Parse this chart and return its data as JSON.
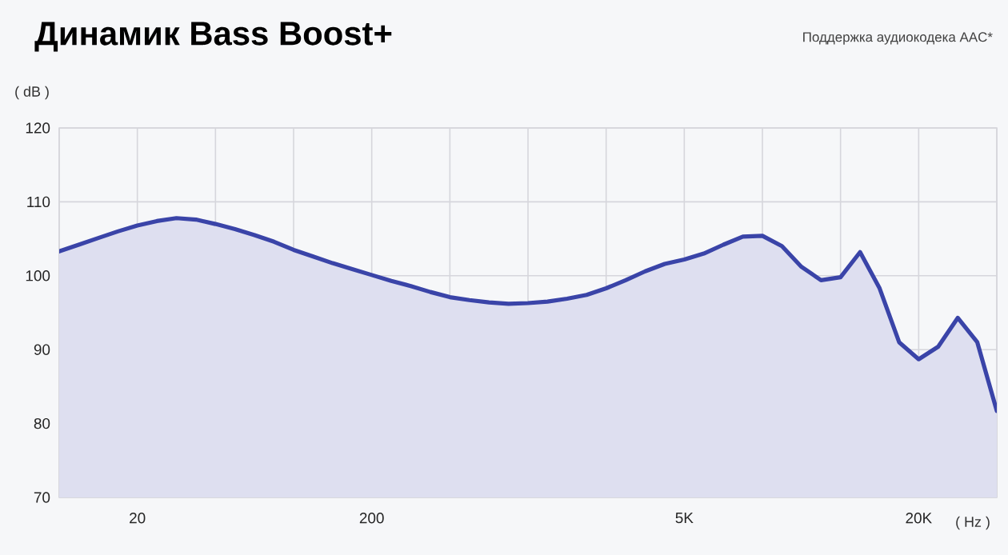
{
  "chart_data": {
    "type": "area",
    "title": "Динамик Bass Boost+",
    "subtitle": "Поддержка аудиокодека AAC*",
    "xlabel": "( Hz )",
    "ylabel": "( dB )",
    "categories": [
      null,
      null,
      null,
      null,
      "20",
      null,
      null,
      null,
      null,
      null,
      null,
      null,
      null,
      null,
      null,
      null,
      "200",
      null,
      null,
      null,
      null,
      null,
      null,
      null,
      null,
      null,
      null,
      null,
      null,
      null,
      null,
      null,
      "5K",
      null,
      null,
      null,
      null,
      null,
      null,
      null,
      null,
      null,
      null,
      null,
      "20K",
      null,
      null,
      null,
      null
    ],
    "values": [
      103.3,
      104.2,
      105.1,
      106.0,
      106.8,
      107.4,
      107.8,
      107.6,
      107.0,
      106.3,
      105.5,
      104.6,
      103.5,
      102.6,
      101.7,
      100.9,
      100.1,
      99.3,
      98.6,
      97.8,
      97.1,
      96.7,
      96.4,
      96.2,
      96.3,
      96.5,
      96.9,
      97.4,
      98.3,
      99.4,
      100.6,
      101.6,
      102.2,
      103.0,
      104.2,
      105.3,
      105.4,
      104.0,
      101.2,
      99.4,
      99.8,
      103.2,
      98.3,
      91.0,
      88.7,
      90.4,
      94.3,
      91.0,
      81.7
    ],
    "color": "#3a44a8",
    "ylim": [
      70,
      120
    ],
    "yticks": [
      70,
      80,
      90,
      100,
      110,
      120
    ],
    "grid": true
  }
}
